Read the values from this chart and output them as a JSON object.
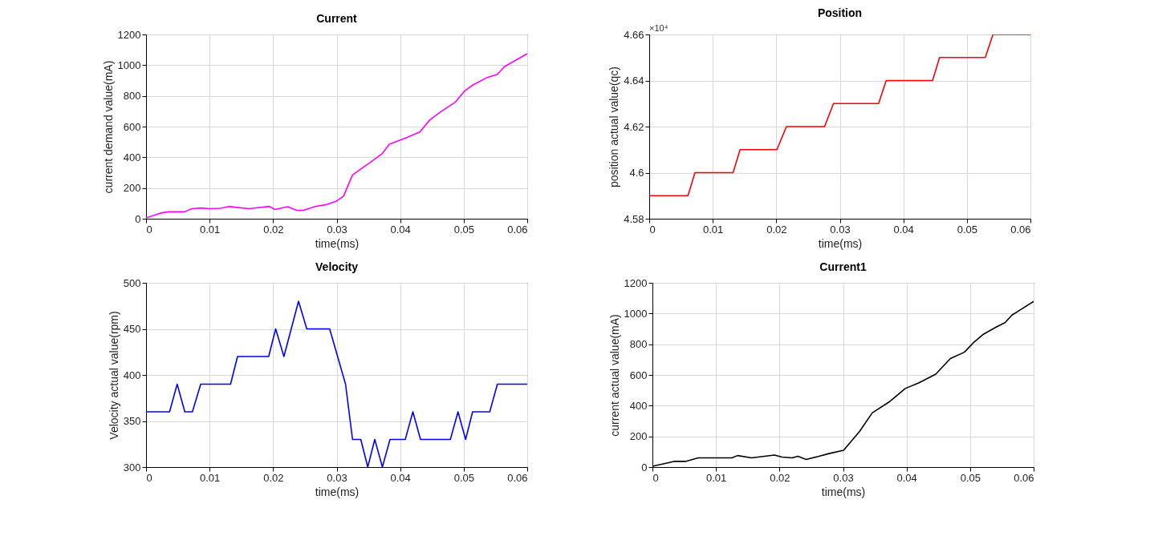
{
  "chart_data": [
    {
      "type": "line",
      "title": "Current",
      "xlabel": "time(ms)",
      "ylabel": "current demand value(mA)",
      "xlim": [
        0,
        0.06
      ],
      "xticks": [
        0,
        0.01,
        0.02,
        0.03,
        0.04,
        0.05,
        0.06
      ],
      "ylim": [
        0,
        1200
      ],
      "yticks": [
        0,
        200,
        400,
        600,
        800,
        1000,
        1200
      ],
      "grid": true,
      "series": [
        {
          "color": "#ff00ff",
          "x": [
            0,
            0.0023,
            0.0036,
            0.0061,
            0.0072,
            0.0086,
            0.01,
            0.0117,
            0.0131,
            0.014,
            0.0162,
            0.0194,
            0.0203,
            0.0223,
            0.0237,
            0.0248,
            0.0266,
            0.0284,
            0.03,
            0.0311,
            0.0325,
            0.0352,
            0.0372,
            0.0383,
            0.0411,
            0.0431,
            0.0447,
            0.0465,
            0.0487,
            0.0501,
            0.0514,
            0.0537,
            0.0553,
            0.0564,
            0.06
          ],
          "values": [
            5,
            37,
            45,
            45,
            65,
            70,
            65,
            68,
            80,
            75,
            65,
            80,
            60,
            78,
            55,
            55,
            80,
            92,
            115,
            148,
            285,
            365,
            425,
            485,
            530,
            565,
            645,
            700,
            760,
            830,
            870,
            920,
            940,
            990,
            1075
          ]
        }
      ]
    },
    {
      "type": "line",
      "title": "Position",
      "xlabel": "time(ms)",
      "ylabel": "position actual value(qc)",
      "xlim": [
        0,
        0.06
      ],
      "xticks": [
        0,
        0.01,
        0.02,
        0.03,
        0.04,
        0.05,
        0.06
      ],
      "ylim": [
        4.58,
        4.66
      ],
      "yticks": [
        4.58,
        4.6,
        4.62,
        4.64,
        4.66
      ],
      "grid": true,
      "annotations": [
        "×10⁴"
      ],
      "series": [
        {
          "color": "#ff0000",
          "x": [
            0,
            0.0061,
            0.0072,
            0.0132,
            0.0143,
            0.0201,
            0.0216,
            0.0276,
            0.029,
            0.0361,
            0.0373,
            0.0446,
            0.0457,
            0.0529,
            0.0541,
            0.06
          ],
          "values": [
            4.59,
            4.59,
            4.6,
            4.6,
            4.61,
            4.61,
            4.62,
            4.62,
            4.63,
            4.63,
            4.64,
            4.64,
            4.65,
            4.65,
            4.66,
            4.66
          ]
        }
      ]
    },
    {
      "type": "line",
      "title": "Velocity",
      "xlabel": "time(ms)",
      "ylabel": "Velocity actual value(rpm)",
      "xlim": [
        0,
        0.06
      ],
      "xticks": [
        0,
        0.01,
        0.02,
        0.03,
        0.04,
        0.05,
        0.06
      ],
      "ylim": [
        300,
        500
      ],
      "yticks": [
        300,
        350,
        400,
        450,
        500
      ],
      "grid": true,
      "series": [
        {
          "color": "#0000ff",
          "x": [
            0,
            0.0037,
            0.0049,
            0.0061,
            0.0073,
            0.0086,
            0.0133,
            0.0144,
            0.0193,
            0.0204,
            0.0217,
            0.024,
            0.0253,
            0.0289,
            0.0314,
            0.0325,
            0.0338,
            0.0349,
            0.036,
            0.0372,
            0.0384,
            0.0408,
            0.042,
            0.0432,
            0.0479,
            0.0491,
            0.0503,
            0.0514,
            0.0541,
            0.0553,
            0.06
          ],
          "values": [
            360,
            360,
            390,
            360,
            360,
            390,
            390,
            420,
            420,
            450,
            420,
            480,
            450,
            450,
            390,
            330,
            330,
            300,
            330,
            300,
            330,
            330,
            360,
            330,
            330,
            360,
            330,
            360,
            360,
            390,
            390
          ]
        }
      ]
    },
    {
      "type": "line",
      "title": "Current1",
      "xlabel": "time(ms)",
      "ylabel": "current actual value(mA)",
      "xlim": [
        0,
        0.06
      ],
      "xticks": [
        0,
        0.01,
        0.02,
        0.03,
        0.04,
        0.05,
        0.06
      ],
      "ylim": [
        0,
        1200
      ],
      "yticks": [
        0,
        200,
        400,
        600,
        800,
        1000,
        1200
      ],
      "grid": true,
      "series": [
        {
          "color": "#000000",
          "x": [
            0,
            0.0034,
            0.0052,
            0.0072,
            0.0102,
            0.0125,
            0.0134,
            0.0156,
            0.0192,
            0.0204,
            0.022,
            0.0229,
            0.0242,
            0.026,
            0.0278,
            0.0301,
            0.0326,
            0.0346,
            0.0374,
            0.0398,
            0.0419,
            0.0446,
            0.0469,
            0.0491,
            0.0505,
            0.0521,
            0.0541,
            0.0555,
            0.0566,
            0.06
          ],
          "values": [
            5,
            37,
            37,
            60,
            60,
            60,
            75,
            60,
            78,
            65,
            60,
            70,
            50,
            68,
            88,
            110,
            232,
            353,
            428,
            512,
            548,
            605,
            707,
            748,
            809,
            865,
            912,
            940,
            990,
            1079
          ]
        }
      ]
    }
  ]
}
